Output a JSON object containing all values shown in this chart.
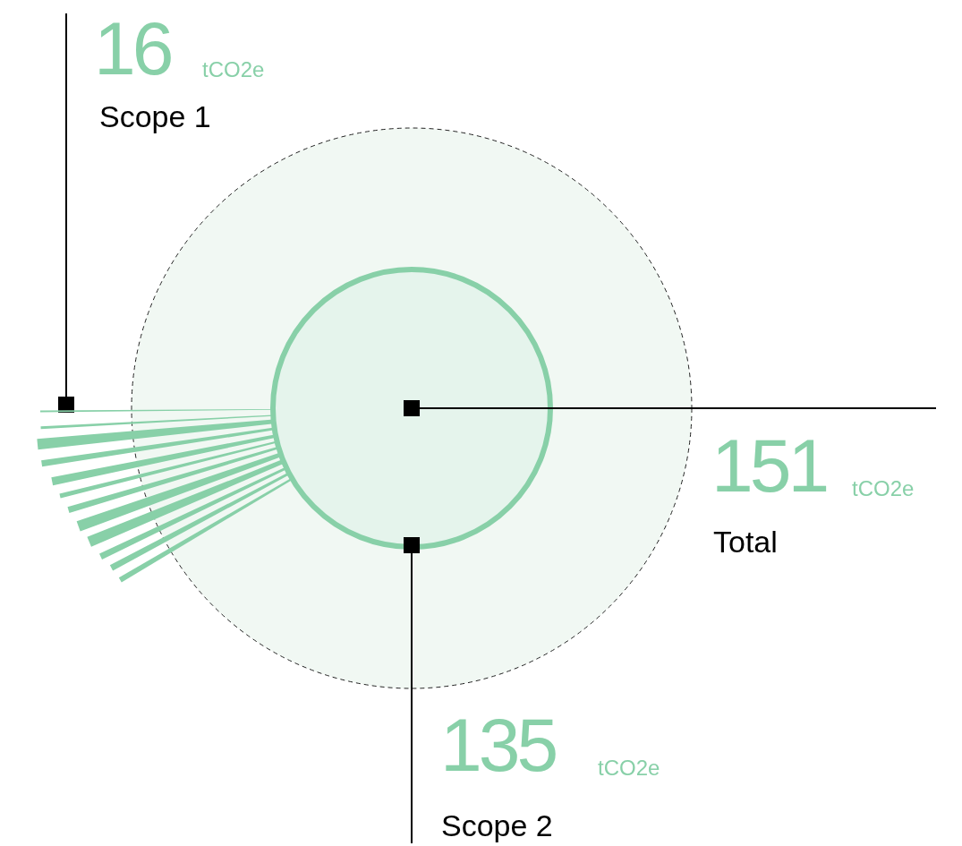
{
  "chart_data": {
    "type": "other",
    "categories": [
      "Scope 1",
      "Scope 2",
      "Total"
    ],
    "values": [
      16,
      135,
      151
    ],
    "data_labels": true,
    "colors": [
      "#88d0a8",
      "#88d0a8",
      "#88d0a8"
    ],
    "annotations": [
      {
        "text": "tCO2e",
        "x": "Scope 1"
      },
      {
        "text": "tCO2e",
        "x": "Scope 2"
      },
      {
        "text": "tCO2e",
        "x": "Total"
      }
    ]
  }
}
